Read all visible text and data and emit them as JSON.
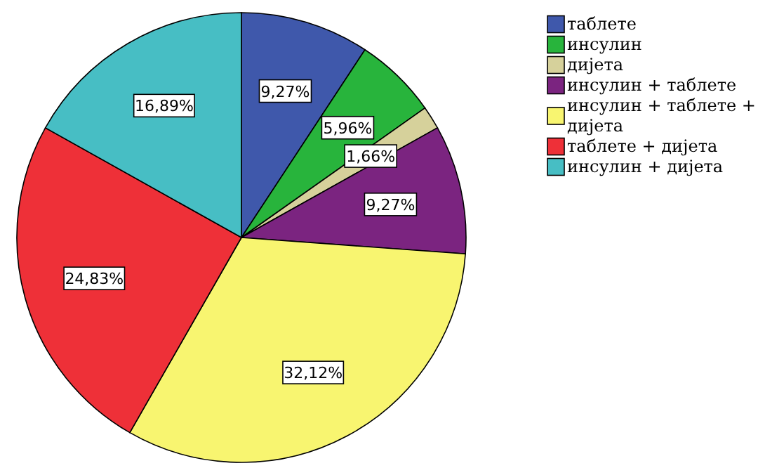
{
  "chart_data": {
    "type": "pie",
    "categories": [
      "таблете",
      "инсулин",
      "дијета",
      "инсулин + таблете",
      "инсулин + таблете + дијета",
      "таблете + дијета",
      "инсулин + дијета"
    ],
    "values": [
      9.27,
      5.96,
      1.66,
      9.27,
      32.12,
      24.83,
      16.89
    ],
    "colors": [
      "#3f58ab",
      "#28b43c",
      "#d6d19b",
      "#7b2480",
      "#f8f570",
      "#ee3038",
      "#47bec4"
    ],
    "value_labels": [
      "9,27%",
      "5,96%",
      "1,66%",
      "9,27%",
      "32,12%",
      "24,83%",
      "16,89%"
    ],
    "legend": "right"
  }
}
